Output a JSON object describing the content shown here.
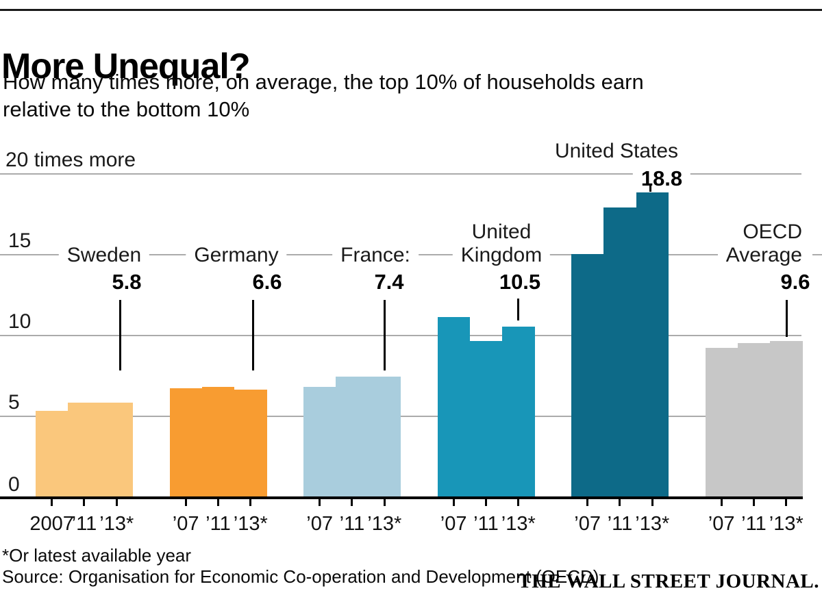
{
  "header": {
    "title": "More Unequal?",
    "subtitle_line1": "How many times more, on average, the top 10% of households earn",
    "subtitle_line2": "relative to the bottom 10%"
  },
  "chart_data": {
    "type": "bar",
    "title": "More Unequal?",
    "subtitle": "How many times more, on average, the top 10% of households earn relative to the bottom 10%",
    "ylim": [
      0,
      20
    ],
    "grid": "horizontal",
    "legend_position": "none",
    "yticks": [
      {
        "value": 20,
        "label": "20 times more"
      },
      {
        "value": 15,
        "label": "15"
      },
      {
        "value": 10,
        "label": "10"
      },
      {
        "value": 5,
        "label": "5"
      },
      {
        "value": 0,
        "label": "0"
      }
    ],
    "groups": [
      {
        "country": "Sweden",
        "label_lines": [
          "Sweden"
        ],
        "highlight_value": "5.8",
        "values": [
          5.3,
          5.8,
          5.8
        ],
        "year_labels": [
          "2007",
          "’11",
          "’13*"
        ],
        "color": "#FAC77C"
      },
      {
        "country": "Germany",
        "label_lines": [
          "Germany"
        ],
        "highlight_value": "6.6",
        "values": [
          6.7,
          6.8,
          6.6
        ],
        "year_labels": [
          "’07",
          "’11",
          "’13*"
        ],
        "color": "#F89C31"
      },
      {
        "country": "France",
        "label_lines": [
          "France:"
        ],
        "highlight_value": "7.4",
        "values": [
          6.8,
          7.4,
          7.4
        ],
        "year_labels": [
          "’07",
          "’11",
          "’13*"
        ],
        "color": "#A9CDDD"
      },
      {
        "country": "United Kingdom",
        "label_lines": [
          "United",
          "Kingdom"
        ],
        "highlight_value": "10.5",
        "values": [
          11.1,
          9.6,
          10.5
        ],
        "year_labels": [
          "’07",
          "’11",
          "’13*"
        ],
        "color": "#1896B8"
      },
      {
        "country": "United States",
        "label_lines": [
          "United States"
        ],
        "highlight_value": "18.8",
        "values": [
          15.0,
          17.9,
          18.8
        ],
        "year_labels": [
          "’07",
          "’11",
          "’13*"
        ],
        "color": "#0D6A88"
      },
      {
        "country": "OECD Average",
        "label_lines": [
          "OECD",
          "Average"
        ],
        "highlight_value": "9.6",
        "values": [
          9.2,
          9.5,
          9.6
        ],
        "year_labels": [
          "’07",
          "’11",
          "’13*"
        ],
        "color": "#C7C7C7"
      }
    ],
    "colors": {
      "grid": "#ABABAB",
      "axis": "#000000",
      "text": "#111111"
    }
  },
  "footer": {
    "footnote": "*Or latest available year",
    "source": "Source: Organisation for Economic Co-operation and Development (OECD)",
    "brand": "THE WALL STREET JOURNAL."
  }
}
